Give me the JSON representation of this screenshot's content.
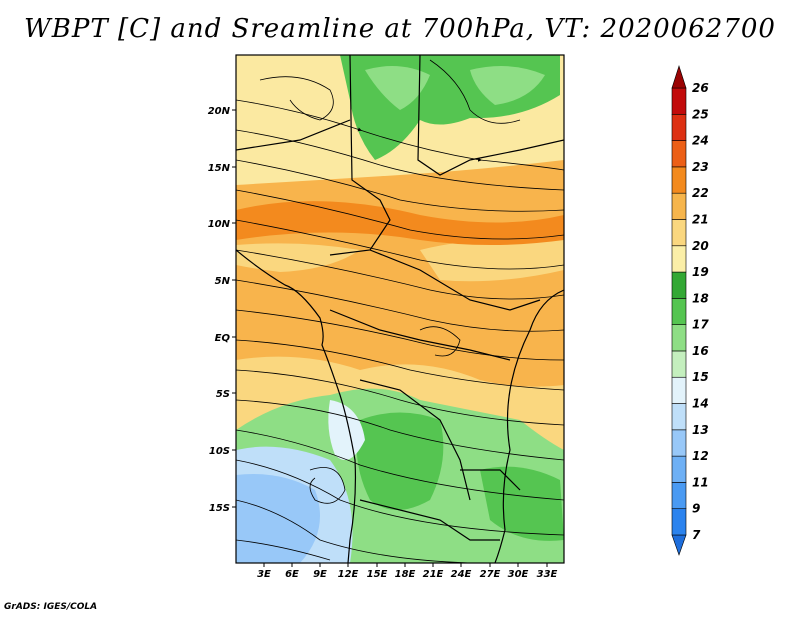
{
  "title": "WBPT [C] and Sreamline at 700hPa, VT: 2020062700",
  "credit": "GrADS: IGES/COLA",
  "map": {
    "lat_labels": [
      "20N",
      "15N",
      "10N",
      "5N",
      "EQ",
      "5S",
      "10S",
      "15S"
    ],
    "lon_labels": [
      "3E",
      "6E",
      "9E",
      "12E",
      "15E",
      "18E",
      "21E",
      "24E",
      "27E",
      "30E",
      "33E"
    ],
    "lat_range": [
      -20,
      25
    ],
    "lon_range": [
      0,
      35
    ]
  },
  "colorbar": {
    "labels": [
      "7",
      "9",
      "11",
      "12",
      "13",
      "14",
      "15",
      "16",
      "17",
      "18",
      "19",
      "20",
      "21",
      "22",
      "23",
      "24",
      "25",
      "26"
    ],
    "colors": [
      "#1e6edc",
      "#2b83ee",
      "#4a9af2",
      "#6eb0f5",
      "#98c8f8",
      "#bfdff9",
      "#e3f3fb",
      "#c4efbe",
      "#8ede85",
      "#55c551",
      "#33a834",
      "#fbefa8",
      "#fad77f",
      "#f6b54c",
      "#f38a1e",
      "#ec5f16",
      "#dd3012",
      "#c20b0b",
      "#9a0303"
    ]
  }
}
